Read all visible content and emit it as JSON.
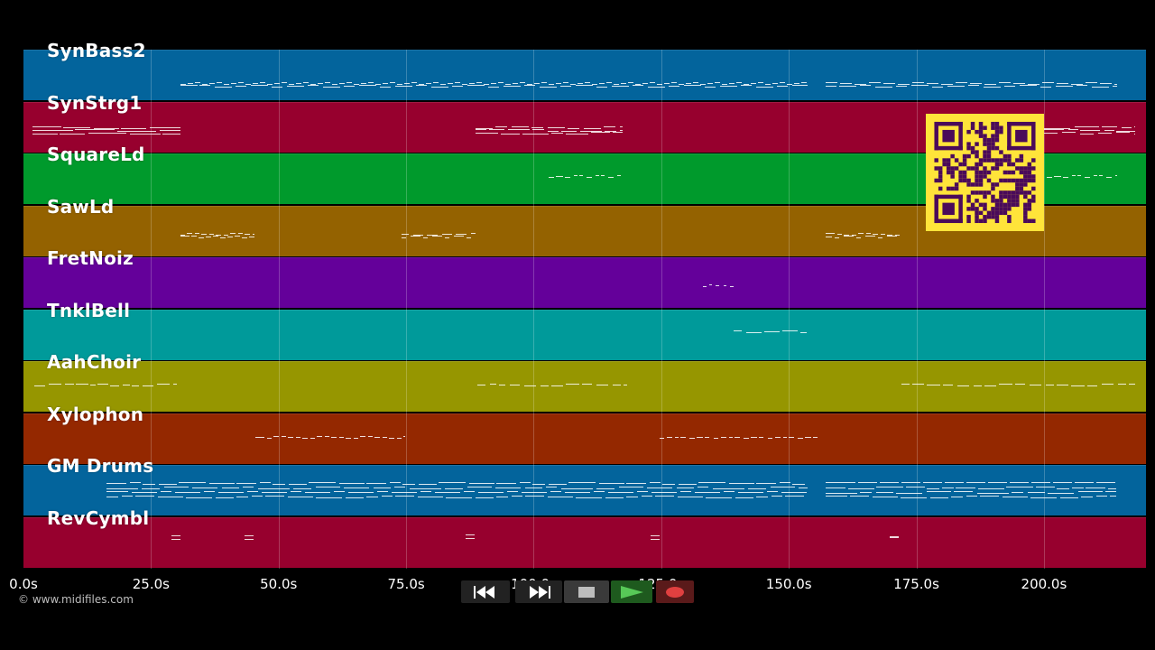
{
  "tracks": [
    {
      "name": "SynBass2",
      "color": "#03649c"
    },
    {
      "name": "SynStrg1",
      "color": "#97002e"
    },
    {
      "name": "SquareLd",
      "color": "#009a2c"
    },
    {
      "name": "SawLd",
      "color": "#946200"
    },
    {
      "name": "FretNoiz",
      "color": "#64009a"
    },
    {
      "name": "TnklBell",
      "color": "#009a9a"
    },
    {
      "name": "AahChoir",
      "color": "#969600"
    },
    {
      "name": "Xylophon",
      "color": "#942800"
    },
    {
      "name": "GM Drums",
      "color": "#03649c"
    },
    {
      "name": "RevCymbl",
      "color": "#97002e"
    }
  ],
  "timeline": {
    "ticks": [
      "0.0s",
      "25.0s",
      "50.0s",
      "75.0s",
      "100.0s",
      "125.0s",
      "150.0s",
      "175.0s",
      "200.0s"
    ],
    "tick_seconds": [
      0,
      25,
      50,
      75,
      100,
      125,
      150,
      175,
      200
    ],
    "visible_end_seconds": 220
  },
  "footer": {
    "copyright": "© www.midifiles.com"
  },
  "controls": {
    "rewind_icon": "rewind-icon",
    "fast_forward_icon": "fast-forward-icon",
    "stop_icon": "stop-icon",
    "play_icon": "play-icon",
    "record_icon": "record-icon"
  },
  "qr": {
    "color_fg": "#4a0a5a",
    "color_bg": "#ffe43a"
  }
}
